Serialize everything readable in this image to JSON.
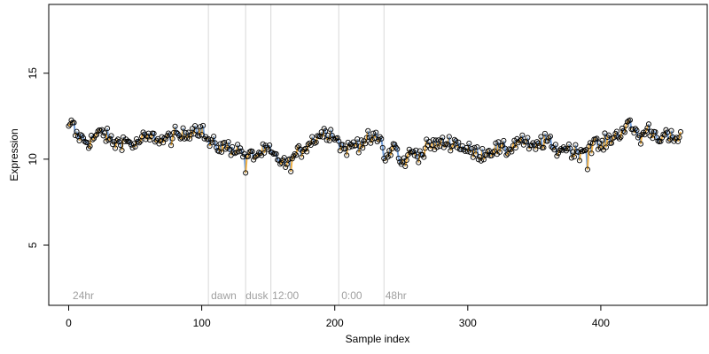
{
  "chart_data": {
    "type": "scatter",
    "xlabel": "Sample index",
    "ylabel": "Expression",
    "xlim": [
      -15,
      480
    ],
    "ylim": [
      1.5,
      19
    ],
    "x_ticks": [
      0,
      100,
      200,
      300,
      400
    ],
    "y_ticks": [
      5,
      10,
      15
    ],
    "grid": false,
    "colors": {
      "points": "#000000",
      "up": "#f5a623",
      "down": "#5b8fd6",
      "separator": "#d8d8d8",
      "region_label": "#a0a0a0"
    },
    "separators": [
      105,
      133,
      152,
      203,
      237
    ],
    "region_labels": [
      {
        "x": 3,
        "text": "24hr"
      },
      {
        "x": 107,
        "text": "dawn"
      },
      {
        "x": 133,
        "text": "dusk"
      },
      {
        "x": 153,
        "text": "12:00"
      },
      {
        "x": 205,
        "text": "0:00"
      },
      {
        "x": 238,
        "text": "48hr"
      }
    ],
    "anchors": [
      [
        0,
        11.7
      ],
      [
        3,
        12.2
      ],
      [
        5,
        11.5
      ],
      [
        10,
        11.2
      ],
      [
        15,
        11.0
      ],
      [
        20,
        11.3
      ],
      [
        25,
        11.6
      ],
      [
        30,
        11.2
      ],
      [
        35,
        10.9
      ],
      [
        40,
        11.1
      ],
      [
        45,
        11.0
      ],
      [
        50,
        10.8
      ],
      [
        55,
        11.2
      ],
      [
        60,
        11.2
      ],
      [
        65,
        11.3
      ],
      [
        70,
        11.1
      ],
      [
        75,
        11.2
      ],
      [
        80,
        11.4
      ],
      [
        85,
        11.3
      ],
      [
        90,
        11.6
      ],
      [
        95,
        11.8
      ],
      [
        100,
        11.7
      ],
      [
        105,
        11.0
      ],
      [
        110,
        10.8
      ],
      [
        115,
        10.7
      ],
      [
        120,
        10.7
      ],
      [
        125,
        10.6
      ],
      [
        130,
        10.5
      ],
      [
        135,
        10.2
      ],
      [
        140,
        10.2
      ],
      [
        145,
        10.4
      ],
      [
        150,
        10.5
      ],
      [
        155,
        10.1
      ],
      [
        160,
        9.9
      ],
      [
        165,
        9.6
      ],
      [
        170,
        10.2
      ],
      [
        175,
        10.5
      ],
      [
        180,
        10.9
      ],
      [
        185,
        11.2
      ],
      [
        190,
        11.5
      ],
      [
        195,
        11.6
      ],
      [
        200,
        11.4
      ],
      [
        205,
        10.7
      ],
      [
        210,
        10.6
      ],
      [
        215,
        10.9
      ],
      [
        220,
        11.0
      ],
      [
        225,
        11.1
      ],
      [
        230,
        11.2
      ],
      [
        235,
        11.1
      ],
      [
        238,
        9.9
      ],
      [
        242,
        10.5
      ],
      [
        245,
        10.9
      ],
      [
        250,
        9.6
      ],
      [
        255,
        10.2
      ],
      [
        260,
        10.5
      ],
      [
        265,
        10.2
      ],
      [
        270,
        10.8
      ],
      [
        280,
        10.9
      ],
      [
        290,
        11.0
      ],
      [
        300,
        10.5
      ],
      [
        310,
        10.3
      ],
      [
        320,
        10.6
      ],
      [
        330,
        10.5
      ],
      [
        335,
        10.9
      ],
      [
        340,
        11.2
      ],
      [
        345,
        10.8
      ],
      [
        350,
        10.6
      ],
      [
        355,
        11.0
      ],
      [
        360,
        11.1
      ],
      [
        365,
        10.5
      ],
      [
        370,
        10.6
      ],
      [
        375,
        10.7
      ],
      [
        380,
        10.4
      ],
      [
        385,
        10.5
      ],
      [
        390,
        10.7
      ],
      [
        395,
        11.0
      ],
      [
        400,
        10.7
      ],
      [
        405,
        11.1
      ],
      [
        410,
        11.3
      ],
      [
        415,
        11.6
      ],
      [
        420,
        12.0
      ],
      [
        425,
        11.7
      ],
      [
        430,
        11.2
      ],
      [
        435,
        11.8
      ],
      [
        440,
        11.5
      ],
      [
        445,
        11.3
      ],
      [
        450,
        11.3
      ],
      [
        455,
        11.1
      ],
      [
        460,
        11.3
      ]
    ],
    "n_points": 461,
    "x_max": 460
  }
}
